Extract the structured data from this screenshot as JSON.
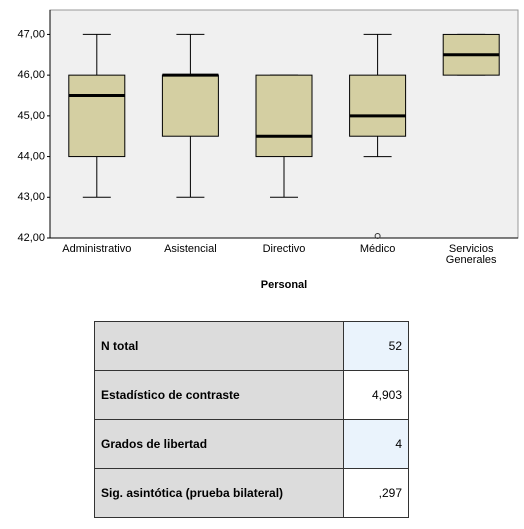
{
  "chart_data": {
    "type": "boxplot",
    "x_label": "Personal",
    "categories": [
      "Administrativo",
      "Asistencial",
      "Directivo",
      "Médico",
      "Servicios Generales"
    ],
    "boxes": [
      {
        "min": 43,
        "q1": 44,
        "median": 45.5,
        "q3": 46,
        "max": 47,
        "outliers": []
      },
      {
        "min": 43,
        "q1": 44.5,
        "median": 46,
        "q3": 46,
        "max": 47,
        "outliers": []
      },
      {
        "min": 43,
        "q1": 44,
        "median": 44.5,
        "q3": 46,
        "max": 46,
        "outliers": []
      },
      {
        "min": 44,
        "q1": 44.5,
        "median": 45,
        "q3": 46,
        "max": 47,
        "outliers": [
          42
        ]
      },
      {
        "min": 46,
        "q1": 46,
        "median": 46.5,
        "q3": 47,
        "max": 47,
        "outliers": []
      }
    ],
    "color": "#d4cfa2",
    "ylim": [
      42,
      47.6
    ],
    "yticks": [
      {
        "value": 42,
        "label": "42,00"
      },
      {
        "value": 43,
        "label": "43,00"
      },
      {
        "value": 44,
        "label": "44,00"
      },
      {
        "value": 45,
        "label": "45,00"
      },
      {
        "value": 46,
        "label": "46,00"
      },
      {
        "value": 47,
        "label": "47,00"
      }
    ]
  },
  "table": {
    "rows": [
      [
        "N total",
        "52"
      ],
      [
        "Estadístico de contraste",
        "4,903"
      ],
      [
        "Grados de libertad",
        "4"
      ],
      [
        "Sig. asintótica (prueba bilateral)",
        ",297"
      ]
    ]
  }
}
